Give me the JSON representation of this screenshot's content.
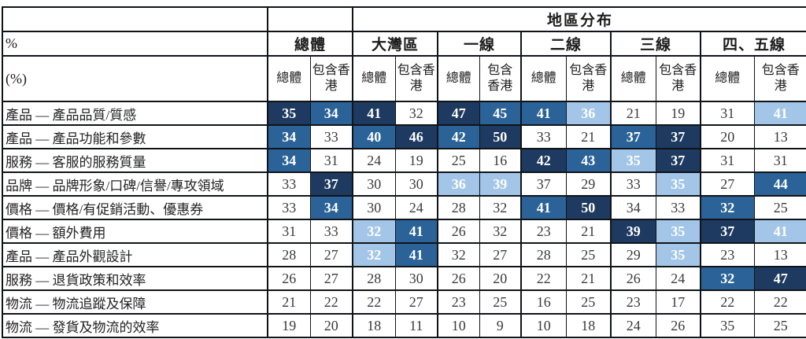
{
  "page": {
    "unit_label_top": "%",
    "unit_label_bottom": "(%)"
  },
  "colors": {
    "dark": "#1e3a60",
    "medium": "#2b6399",
    "light": "#a3c6e8",
    "grid": "#101418",
    "value_text": "#3a3a3a",
    "shaded_value_text": "#ffffff"
  },
  "chart_data": {
    "type": "heatmap",
    "title": "地區分布",
    "unit": "%",
    "overall_group_label": "總體",
    "region_group_labels": [
      "大灣區",
      "一線",
      "二線",
      "三線",
      "四、五線"
    ],
    "subcolumn_labels": [
      "總體",
      "包含香港"
    ],
    "columns": [
      "總體-總體",
      "總體-包含香港",
      "大灣區-總體",
      "大灣區-包含香港",
      "一線-總體",
      "一線-包含香港",
      "二線-總體",
      "二線-包含香港",
      "三線-總體",
      "三線-包含香港",
      "四、五線-總體",
      "四、五線-包含香港"
    ],
    "shade_scale": [
      "dark",
      "medium",
      "light",
      "none"
    ],
    "rows": [
      {
        "label": "產品 — 產品品質/質感",
        "values": [
          35,
          34,
          41,
          32,
          47,
          45,
          41,
          36,
          21,
          19,
          31,
          41
        ],
        "shades": [
          "dark",
          "medium",
          "dark",
          "none",
          "dark",
          "medium",
          "medium",
          "light",
          "none",
          "none",
          "none",
          "light"
        ]
      },
      {
        "label": "產品 — 產品功能和參數",
        "values": [
          34,
          33,
          40,
          46,
          42,
          50,
          33,
          21,
          37,
          37,
          20,
          13
        ],
        "shades": [
          "medium",
          "none",
          "medium",
          "dark",
          "medium",
          "dark",
          "none",
          "none",
          "medium",
          "dark",
          "none",
          "none"
        ]
      },
      {
        "label": "服務 — 客服的服務質量",
        "values": [
          34,
          31,
          24,
          19,
          25,
          16,
          42,
          43,
          35,
          37,
          31,
          31
        ],
        "shades": [
          "medium",
          "none",
          "none",
          "none",
          "none",
          "none",
          "dark",
          "medium",
          "light",
          "dark",
          "none",
          "none"
        ]
      },
      {
        "label": "品牌 — 品牌形象/口碑/信譽/專攻領域",
        "values": [
          33,
          37,
          30,
          30,
          36,
          39,
          37,
          29,
          33,
          35,
          27,
          44
        ],
        "shades": [
          "none",
          "dark",
          "none",
          "none",
          "light",
          "light",
          "none",
          "none",
          "none",
          "light",
          "none",
          "medium"
        ]
      },
      {
        "label": "價格 — 價格/有促銷活動、優惠券",
        "values": [
          33,
          34,
          30,
          24,
          28,
          32,
          41,
          50,
          34,
          33,
          32,
          25
        ],
        "shades": [
          "none",
          "medium",
          "none",
          "none",
          "none",
          "none",
          "medium",
          "dark",
          "none",
          "none",
          "medium",
          "none"
        ]
      },
      {
        "label": "價格 — 額外費用",
        "values": [
          31,
          33,
          32,
          41,
          26,
          32,
          23,
          21,
          39,
          35,
          37,
          41
        ],
        "shades": [
          "none",
          "none",
          "light",
          "medium",
          "none",
          "none",
          "none",
          "none",
          "dark",
          "light",
          "dark",
          "light"
        ]
      },
      {
        "label": "產品 — 產品外觀設計",
        "values": [
          28,
          27,
          32,
          41,
          32,
          27,
          28,
          25,
          29,
          35,
          23,
          13
        ],
        "shades": [
          "none",
          "none",
          "light",
          "medium",
          "none",
          "none",
          "none",
          "none",
          "none",
          "light",
          "none",
          "none"
        ]
      },
      {
        "label": "服務 — 退貨政策和效率",
        "values": [
          26,
          27,
          28,
          30,
          26,
          20,
          22,
          21,
          26,
          24,
          32,
          47
        ],
        "shades": [
          "none",
          "none",
          "none",
          "none",
          "none",
          "none",
          "none",
          "none",
          "none",
          "none",
          "medium",
          "dark"
        ]
      },
      {
        "label": "物流 — 物流追蹤及保障",
        "values": [
          21,
          22,
          22,
          27,
          23,
          25,
          16,
          25,
          23,
          17,
          22,
          22
        ],
        "shades": [
          "none",
          "none",
          "none",
          "none",
          "none",
          "none",
          "none",
          "none",
          "none",
          "none",
          "none",
          "none"
        ]
      },
      {
        "label": "物流 — 發貨及物流的效率",
        "values": [
          19,
          20,
          18,
          11,
          10,
          9,
          10,
          18,
          24,
          26,
          35,
          25
        ],
        "shades": [
          "none",
          "none",
          "none",
          "none",
          "none",
          "none",
          "none",
          "none",
          "none",
          "none",
          "none",
          "none"
        ]
      }
    ]
  }
}
